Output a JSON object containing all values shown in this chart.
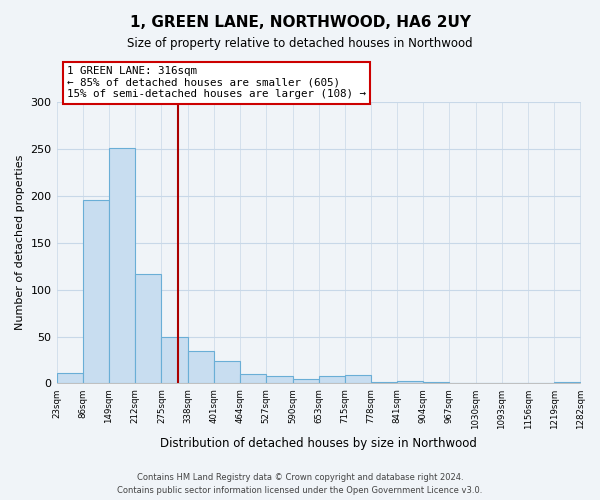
{
  "title": "1, GREEN LANE, NORTHWOOD, HA6 2UY",
  "subtitle": "Size of property relative to detached houses in Northwood",
  "xlabel": "Distribution of detached houses by size in Northwood",
  "ylabel": "Number of detached properties",
  "bar_color": "#c8ddf0",
  "bar_edge_color": "#6aaed6",
  "bins": [
    23,
    86,
    149,
    212,
    275,
    338,
    401,
    464,
    527,
    590,
    653,
    715,
    778,
    841,
    904,
    967,
    1030,
    1093,
    1156,
    1219,
    1282
  ],
  "bin_labels": [
    "23sqm",
    "86sqm",
    "149sqm",
    "212sqm",
    "275sqm",
    "338sqm",
    "401sqm",
    "464sqm",
    "527sqm",
    "590sqm",
    "653sqm",
    "715sqm",
    "778sqm",
    "841sqm",
    "904sqm",
    "967sqm",
    "1030sqm",
    "1093sqm",
    "1156sqm",
    "1219sqm",
    "1282sqm"
  ],
  "counts": [
    11,
    196,
    251,
    117,
    50,
    35,
    24,
    10,
    8,
    5,
    8,
    9,
    2,
    3,
    1,
    0,
    0,
    0,
    0,
    2
  ],
  "property_size": 316,
  "property_line_color": "#aa0000",
  "annotation_line1": "1 GREEN LANE: 316sqm",
  "annotation_line2": "← 85% of detached houses are smaller (605)",
  "annotation_line3": "15% of semi-detached houses are larger (108) →",
  "footer_line1": "Contains HM Land Registry data © Crown copyright and database right 2024.",
  "footer_line2": "Contains public sector information licensed under the Open Government Licence v3.0.",
  "ylim": [
    0,
    300
  ],
  "yticks": [
    0,
    50,
    100,
    150,
    200,
    250,
    300
  ],
  "background_color": "#f0f4f8",
  "grid_color": "#c8d8e8"
}
